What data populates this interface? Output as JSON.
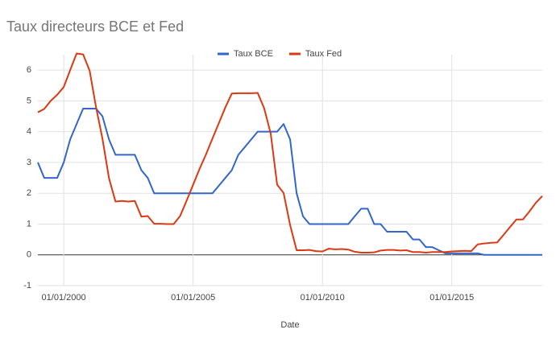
{
  "chart_data": {
    "type": "line",
    "title": "Taux directeurs BCE et Fed",
    "x_label": "Date",
    "x": [
      "1999-01-01",
      "1999-04-01",
      "1999-07-01",
      "1999-10-01",
      "2000-01-01",
      "2000-04-01",
      "2000-07-01",
      "2000-10-01",
      "2001-01-01",
      "2001-04-01",
      "2001-07-01",
      "2001-10-01",
      "2002-01-01",
      "2002-04-01",
      "2002-07-01",
      "2002-10-01",
      "2003-01-01",
      "2003-04-01",
      "2003-07-01",
      "2003-10-01",
      "2004-01-01",
      "2004-04-01",
      "2004-07-01",
      "2004-10-01",
      "2005-01-01",
      "2005-04-01",
      "2005-07-01",
      "2005-10-01",
      "2006-01-01",
      "2006-04-01",
      "2006-07-01",
      "2006-10-01",
      "2007-01-01",
      "2007-04-01",
      "2007-07-01",
      "2007-10-01",
      "2008-01-01",
      "2008-04-01",
      "2008-07-01",
      "2008-10-01",
      "2009-01-01",
      "2009-04-01",
      "2009-07-01",
      "2009-10-01",
      "2010-01-01",
      "2010-04-01",
      "2010-07-01",
      "2010-10-01",
      "2011-01-01",
      "2011-04-01",
      "2011-07-01",
      "2011-10-01",
      "2012-01-01",
      "2012-04-01",
      "2012-07-01",
      "2012-10-01",
      "2013-01-01",
      "2013-04-01",
      "2013-07-01",
      "2013-10-01",
      "2014-01-01",
      "2014-04-01",
      "2014-07-01",
      "2014-10-01",
      "2015-01-01",
      "2015-04-01",
      "2015-07-01",
      "2015-10-01",
      "2016-01-01",
      "2016-04-01",
      "2016-07-01",
      "2016-10-01",
      "2017-01-01",
      "2017-04-01",
      "2017-07-01",
      "2017-10-01",
      "2018-01-01",
      "2018-04-01",
      "2018-07-01"
    ],
    "series": [
      {
        "name": "Taux BCE",
        "color": "#3366cc",
        "values": [
          3.0,
          2.5,
          2.5,
          2.5,
          3.0,
          3.75,
          4.25,
          4.75,
          4.75,
          4.75,
          4.5,
          3.75,
          3.25,
          3.25,
          3.25,
          3.25,
          2.75,
          2.5,
          2.0,
          2.0,
          2,
          2,
          2,
          2,
          2,
          2,
          2,
          2,
          2.25,
          2.5,
          2.75,
          3.25,
          3.5,
          3.75,
          4.0,
          4.0,
          4.0,
          4.0,
          4.25,
          3.75,
          2.0,
          1.25,
          1.0,
          1.0,
          1,
          1,
          1,
          1,
          1.0,
          1.25,
          1.5,
          1.5,
          1.0,
          1.0,
          0.75,
          0.75,
          0.75,
          0.75,
          0.5,
          0.5,
          0.25,
          0.25,
          0.15,
          0.05,
          0.05,
          0.05,
          0.05,
          0.05,
          0.05,
          0,
          0,
          0,
          0,
          0,
          0,
          0,
          0,
          0,
          0
        ]
      },
      {
        "name": "Taux Fed",
        "color": "#dc3912",
        "values": [
          4.63,
          4.74,
          5.0,
          5.2,
          5.45,
          6.0,
          6.54,
          6.51,
          5.98,
          4.8,
          3.77,
          2.49,
          1.73,
          1.75,
          1.73,
          1.75,
          1.24,
          1.26,
          1.01,
          1.01,
          1.0,
          1.0,
          1.26,
          1.76,
          2.28,
          2.79,
          3.26,
          3.78,
          4.29,
          4.79,
          5.24,
          5.25,
          5.25,
          5.25,
          5.26,
          4.76,
          3.94,
          2.28,
          2.01,
          0.97,
          0.15,
          0.15,
          0.16,
          0.12,
          0.11,
          0.2,
          0.18,
          0.19,
          0.17,
          0.1,
          0.07,
          0.07,
          0.08,
          0.14,
          0.16,
          0.16,
          0.14,
          0.15,
          0.09,
          0.09,
          0.07,
          0.09,
          0.09,
          0.09,
          0.11,
          0.12,
          0.13,
          0.12,
          0.34,
          0.37,
          0.39,
          0.4,
          0.65,
          0.9,
          1.15,
          1.15,
          1.41,
          1.69,
          1.91
        ]
      }
    ],
    "xlim": [
      "1999-01-01",
      "2018-07-01"
    ],
    "xticks": [
      {
        "value": "2000-01-01",
        "label": "01/01/2000"
      },
      {
        "value": "2005-01-01",
        "label": "01/01/2005"
      },
      {
        "value": "2010-01-01",
        "label": "01/01/2010"
      },
      {
        "value": "2015-01-01",
        "label": "01/01/2015"
      }
    ],
    "ylim": [
      -1,
      6.5
    ],
    "yticks": [
      -1,
      0,
      1,
      2,
      3,
      4,
      5,
      6
    ],
    "grid": true,
    "legend": "top"
  }
}
